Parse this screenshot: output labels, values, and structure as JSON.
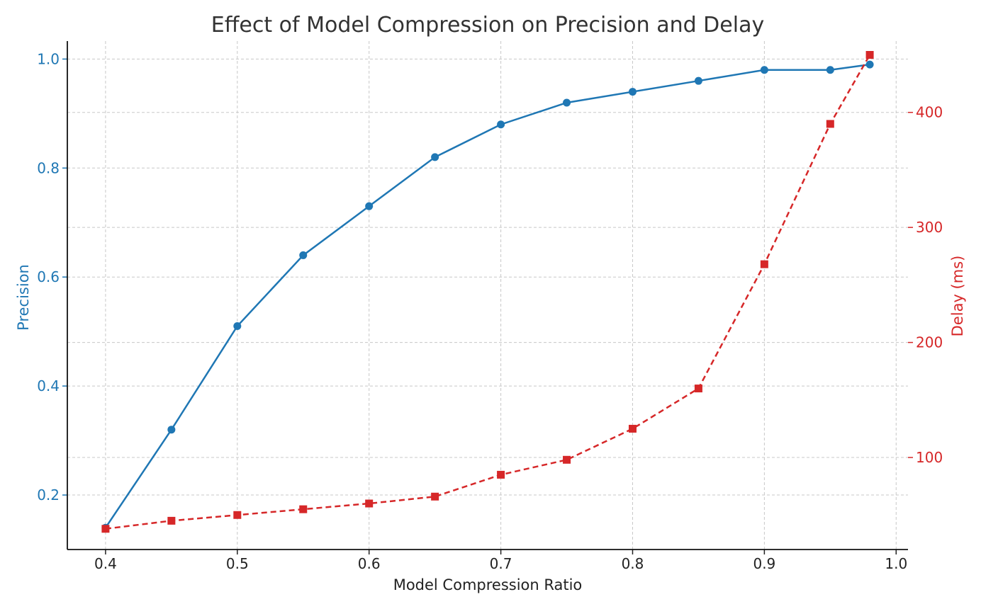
{
  "chart_data": {
    "type": "line",
    "title": "Effect of Model Compression on Precision and Delay",
    "xlabel": "Model Compression Ratio",
    "ylabel": "Precision",
    "y2label": "Delay (ms)",
    "xlim": [
      0.371,
      1.009
    ],
    "ylim": [
      0.1,
      1.033
    ],
    "y2lim": [
      20,
      462
    ],
    "grid": true,
    "x": [
      0.4,
      0.45,
      0.5,
      0.55,
      0.6,
      0.65,
      0.7,
      0.75,
      0.8,
      0.85,
      0.9,
      0.95,
      0.98
    ],
    "xticks": [
      "0.4",
      "0.5",
      "0.6",
      "0.7",
      "0.8",
      "0.9",
      "1.0"
    ],
    "yticks": [
      "0.2",
      "0.4",
      "0.6",
      "0.8",
      "1.0"
    ],
    "y2ticks": [
      "100",
      "200",
      "300",
      "400"
    ],
    "series": [
      {
        "name": "Precision",
        "axis": "left",
        "color": "#1f77b4",
        "style": "solid",
        "marker": "circle",
        "values": [
          0.14,
          0.32,
          0.51,
          0.64,
          0.73,
          0.82,
          0.88,
          0.92,
          0.94,
          0.96,
          0.98,
          0.98,
          0.99
        ]
      },
      {
        "name": "Delay",
        "axis": "right",
        "color": "#d62728",
        "style": "dashed",
        "marker": "square",
        "values": [
          38,
          45,
          50,
          55,
          60,
          66,
          85,
          98,
          125,
          160,
          268,
          390,
          450
        ]
      }
    ]
  }
}
